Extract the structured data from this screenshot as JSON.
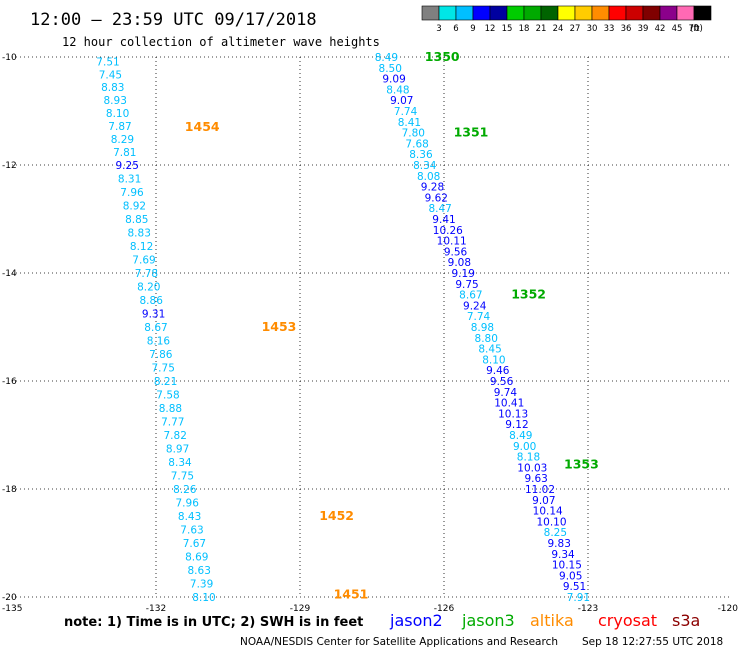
{
  "header": {
    "title": "12:00 — 23:59 UTC 09/17/2018",
    "subtitle": "12 hour collection of altimeter wave heights"
  },
  "colorscale": {
    "labels": [
      "3",
      "6",
      "9",
      "12",
      "15",
      "18",
      "21",
      "24",
      "27",
      "30",
      "33",
      "36",
      "39",
      "42",
      "45",
      "70",
      "(ft)"
    ],
    "colors": [
      "#808080",
      "#00e6e6",
      "#00bfff",
      "#0000ff",
      "#0000a0",
      "#00cc00",
      "#00aa00",
      "#006400",
      "#ffff00",
      "#ffcc00",
      "#ff8c00",
      "#ff0000",
      "#cc0000",
      "#800000",
      "#8b008b",
      "#ff69b4",
      "#000000"
    ]
  },
  "footer": {
    "note": "note:  1) Time is in UTC;  2) SWH is in feet",
    "satellites": [
      {
        "name": "jason2",
        "color": "#0000ff"
      },
      {
        "name": "jason3",
        "color": "#00aa00"
      },
      {
        "name": "altika",
        "color": "#ff8c00"
      },
      {
        "name": "cryosat",
        "color": "#ff0000"
      },
      {
        "name": "s3a",
        "color": "#8b0000"
      }
    ],
    "credit": "NOAA/NESDIS Center for Satellite Applications and Research",
    "timestamp": "Sep 18 12:27:55 UTC 2018"
  },
  "chart_data": {
    "type": "scatter",
    "xlim": [
      -135,
      -120
    ],
    "ylim": [
      -20,
      -10
    ],
    "xticks": [
      "-135",
      "-132",
      "-129",
      "-126",
      "-123",
      "-120"
    ],
    "yticks": [
      "-10",
      "-12",
      "-14",
      "-16",
      "-18",
      "-20"
    ],
    "grid": true,
    "series": [
      {
        "name": "altika",
        "color": "#ff8c00",
        "pass_labels": [
          {
            "text": "1454",
            "x": -131.4,
            "y": -11.3
          },
          {
            "text": "1453",
            "x": -129.8,
            "y": -15.0
          },
          {
            "text": "1452",
            "x": -128.6,
            "y": -18.5
          },
          {
            "text": "1451",
            "x": -128.3,
            "y": -19.95
          }
        ],
        "points": [
          {
            "x": -133.0,
            "y": -10.08,
            "v": "7.51",
            "c": "#00bfff"
          },
          {
            "x": -132.95,
            "y": -10.32,
            "v": "7.45",
            "c": "#00bfff"
          },
          {
            "x": -132.9,
            "y": -10.56,
            "v": "8.83",
            "c": "#00bfff"
          },
          {
            "x": -132.85,
            "y": -10.8,
            "v": "8.93",
            "c": "#00bfff"
          },
          {
            "x": -132.8,
            "y": -11.04,
            "v": "8.10",
            "c": "#00bfff"
          },
          {
            "x": -132.75,
            "y": -11.28,
            "v": "7.87",
            "c": "#00bfff"
          },
          {
            "x": -132.7,
            "y": -11.52,
            "v": "8.29",
            "c": "#00bfff"
          },
          {
            "x": -132.65,
            "y": -11.76,
            "v": "7.81",
            "c": "#00bfff"
          },
          {
            "x": -132.6,
            "y": -12.0,
            "v": "9.25",
            "c": "#0000ff"
          },
          {
            "x": -132.55,
            "y": -12.25,
            "v": "8.31",
            "c": "#00bfff"
          },
          {
            "x": -132.5,
            "y": -12.5,
            "v": "7.96",
            "c": "#00bfff"
          },
          {
            "x": -132.45,
            "y": -12.75,
            "v": "8.92",
            "c": "#00bfff"
          },
          {
            "x": -132.4,
            "y": -13.0,
            "v": "8.85",
            "c": "#00bfff"
          },
          {
            "x": -132.35,
            "y": -13.25,
            "v": "8.83",
            "c": "#00bfff"
          },
          {
            "x": -132.3,
            "y": -13.5,
            "v": "8.12",
            "c": "#00bfff"
          },
          {
            "x": -132.25,
            "y": -13.75,
            "v": "7.69",
            "c": "#00bfff"
          },
          {
            "x": -132.2,
            "y": -14.0,
            "v": "7.78",
            "c": "#00bfff"
          },
          {
            "x": -132.15,
            "y": -14.25,
            "v": "8.20",
            "c": "#00bfff"
          },
          {
            "x": -132.1,
            "y": -14.5,
            "v": "8.86",
            "c": "#00bfff"
          },
          {
            "x": -132.05,
            "y": -14.75,
            "v": "9.31",
            "c": "#0000ff"
          },
          {
            "x": -132.0,
            "y": -15.0,
            "v": "8.67",
            "c": "#00bfff"
          },
          {
            "x": -131.95,
            "y": -15.25,
            "v": "8.16",
            "c": "#00bfff"
          },
          {
            "x": -131.9,
            "y": -15.5,
            "v": "7.86",
            "c": "#00bfff"
          },
          {
            "x": -131.85,
            "y": -15.75,
            "v": "7.75",
            "c": "#00bfff"
          },
          {
            "x": -131.8,
            "y": -16.0,
            "v": "8.21",
            "c": "#00bfff"
          },
          {
            "x": -131.75,
            "y": -16.25,
            "v": "7.58",
            "c": "#00bfff"
          },
          {
            "x": -131.7,
            "y": -16.5,
            "v": "8.88",
            "c": "#00bfff"
          },
          {
            "x": -131.65,
            "y": -16.75,
            "v": "7.77",
            "c": "#00bfff"
          },
          {
            "x": -131.6,
            "y": -17.0,
            "v": "7.82",
            "c": "#00bfff"
          },
          {
            "x": -131.55,
            "y": -17.25,
            "v": "8.97",
            "c": "#00bfff"
          },
          {
            "x": -131.5,
            "y": -17.5,
            "v": "8.34",
            "c": "#00bfff"
          },
          {
            "x": -131.45,
            "y": -17.75,
            "v": "7.75",
            "c": "#00bfff"
          },
          {
            "x": -131.4,
            "y": -18.0,
            "v": "8.26",
            "c": "#00bfff"
          },
          {
            "x": -131.35,
            "y": -18.25,
            "v": "7.96",
            "c": "#00bfff"
          },
          {
            "x": -131.3,
            "y": -18.5,
            "v": "8.43",
            "c": "#00bfff"
          },
          {
            "x": -131.25,
            "y": -18.75,
            "v": "7.63",
            "c": "#00bfff"
          },
          {
            "x": -131.2,
            "y": -19.0,
            "v": "7.67",
            "c": "#00bfff"
          },
          {
            "x": -131.15,
            "y": -19.25,
            "v": "8.69",
            "c": "#00bfff"
          },
          {
            "x": -131.1,
            "y": -19.5,
            "v": "8.63",
            "c": "#00bfff"
          },
          {
            "x": -131.05,
            "y": -19.75,
            "v": "7.39",
            "c": "#00bfff"
          },
          {
            "x": -131.0,
            "y": -20.0,
            "v": "8.10",
            "c": "#00bfff"
          }
        ]
      },
      {
        "name": "jason3",
        "color": "#00aa00",
        "pass_labels": [
          {
            "text": "1350",
            "x": -126.4,
            "y": -10.0
          },
          {
            "text": "1351",
            "x": -125.8,
            "y": -11.4
          },
          {
            "text": "1352",
            "x": -124.6,
            "y": -14.4
          },
          {
            "text": "1353",
            "x": -123.5,
            "y": -17.55
          }
        ],
        "points": [
          {
            "x": -127.2,
            "y": -10.0,
            "v": "8.49",
            "c": "#00bfff"
          },
          {
            "x": -127.12,
            "y": -10.2,
            "v": "8.50",
            "c": "#00bfff"
          },
          {
            "x": -127.04,
            "y": -10.4,
            "v": "9.09",
            "c": "#0000ff"
          },
          {
            "x": -126.96,
            "y": -10.6,
            "v": "8.48",
            "c": "#00bfff"
          },
          {
            "x": -126.88,
            "y": -10.8,
            "v": "9.07",
            "c": "#0000ff"
          },
          {
            "x": -126.8,
            "y": -11.0,
            "v": "7.74",
            "c": "#00bfff"
          },
          {
            "x": -126.72,
            "y": -11.2,
            "v": "8.41",
            "c": "#00bfff"
          },
          {
            "x": -126.64,
            "y": -11.4,
            "v": "7.80",
            "c": "#00bfff"
          },
          {
            "x": -126.56,
            "y": -11.6,
            "v": "7.68",
            "c": "#00bfff"
          },
          {
            "x": -126.48,
            "y": -11.8,
            "v": "8.36",
            "c": "#00bfff"
          },
          {
            "x": -126.4,
            "y": -12.0,
            "v": "8.34",
            "c": "#00bfff"
          },
          {
            "x": -126.32,
            "y": -12.2,
            "v": "8.08",
            "c": "#00bfff"
          },
          {
            "x": -126.24,
            "y": -12.4,
            "v": "9.28",
            "c": "#0000ff"
          },
          {
            "x": -126.16,
            "y": -12.6,
            "v": "9.62",
            "c": "#0000ff"
          },
          {
            "x": -126.08,
            "y": -12.8,
            "v": "8.47",
            "c": "#00bfff"
          },
          {
            "x": -126.0,
            "y": -13.0,
            "v": "9.41",
            "c": "#0000ff"
          },
          {
            "x": -125.92,
            "y": -13.2,
            "v": "10.26",
            "c": "#0000ff"
          },
          {
            "x": -125.84,
            "y": -13.4,
            "v": "10.11",
            "c": "#0000ff"
          },
          {
            "x": -125.76,
            "y": -13.6,
            "v": "9.56",
            "c": "#0000ff"
          },
          {
            "x": -125.68,
            "y": -13.8,
            "v": "9.08",
            "c": "#0000ff"
          },
          {
            "x": -125.6,
            "y": -14.0,
            "v": "9.19",
            "c": "#0000ff"
          },
          {
            "x": -125.52,
            "y": -14.2,
            "v": "9.75",
            "c": "#0000ff"
          },
          {
            "x": -125.44,
            "y": -14.4,
            "v": "8.67",
            "c": "#00bfff"
          },
          {
            "x": -125.36,
            "y": -14.6,
            "v": "9.24",
            "c": "#0000ff"
          },
          {
            "x": -125.28,
            "y": -14.8,
            "v": "7.74",
            "c": "#00bfff"
          },
          {
            "x": -125.2,
            "y": -15.0,
            "v": "8.98",
            "c": "#00bfff"
          },
          {
            "x": -125.12,
            "y": -15.2,
            "v": "8.80",
            "c": "#00bfff"
          },
          {
            "x": -125.04,
            "y": -15.4,
            "v": "8.45",
            "c": "#00bfff"
          },
          {
            "x": -124.96,
            "y": -15.6,
            "v": "8.10",
            "c": "#00bfff"
          },
          {
            "x": -124.88,
            "y": -15.8,
            "v": "9.46",
            "c": "#0000ff"
          },
          {
            "x": -124.8,
            "y": -16.0,
            "v": "9.56",
            "c": "#0000ff"
          },
          {
            "x": -124.72,
            "y": -16.2,
            "v": "9.74",
            "c": "#0000ff"
          },
          {
            "x": -124.64,
            "y": -16.4,
            "v": "10.41",
            "c": "#0000ff"
          },
          {
            "x": -124.56,
            "y": -16.6,
            "v": "10.13",
            "c": "#0000ff"
          },
          {
            "x": -124.48,
            "y": -16.8,
            "v": "9.12",
            "c": "#0000ff"
          },
          {
            "x": -124.4,
            "y": -17.0,
            "v": "8.49",
            "c": "#00bfff"
          },
          {
            "x": -124.32,
            "y": -17.2,
            "v": "9.00",
            "c": "#00bfff"
          },
          {
            "x": -124.24,
            "y": -17.4,
            "v": "8.18",
            "c": "#00bfff"
          },
          {
            "x": -124.16,
            "y": -17.6,
            "v": "10.03",
            "c": "#0000ff"
          },
          {
            "x": -124.08,
            "y": -17.8,
            "v": "9.63",
            "c": "#0000ff"
          },
          {
            "x": -124.0,
            "y": -18.0,
            "v": "11.02",
            "c": "#0000ff"
          },
          {
            "x": -123.92,
            "y": -18.2,
            "v": "9.07",
            "c": "#0000ff"
          },
          {
            "x": -123.84,
            "y": -18.4,
            "v": "10.14",
            "c": "#0000ff"
          },
          {
            "x": -123.76,
            "y": -18.6,
            "v": "10.10",
            "c": "#0000ff"
          },
          {
            "x": -123.68,
            "y": -18.8,
            "v": "8.25",
            "c": "#00bfff"
          },
          {
            "x": -123.6,
            "y": -19.0,
            "v": "9.83",
            "c": "#0000ff"
          },
          {
            "x": -123.52,
            "y": -19.2,
            "v": "9.34",
            "c": "#0000ff"
          },
          {
            "x": -123.44,
            "y": -19.4,
            "v": "10.15",
            "c": "#0000ff"
          },
          {
            "x": -123.36,
            "y": -19.6,
            "v": "9.05",
            "c": "#0000ff"
          },
          {
            "x": -123.28,
            "y": -19.8,
            "v": "9.51",
            "c": "#0000ff"
          },
          {
            "x": -123.2,
            "y": -20.0,
            "v": "7.91",
            "c": "#00bfff"
          }
        ]
      }
    ]
  }
}
